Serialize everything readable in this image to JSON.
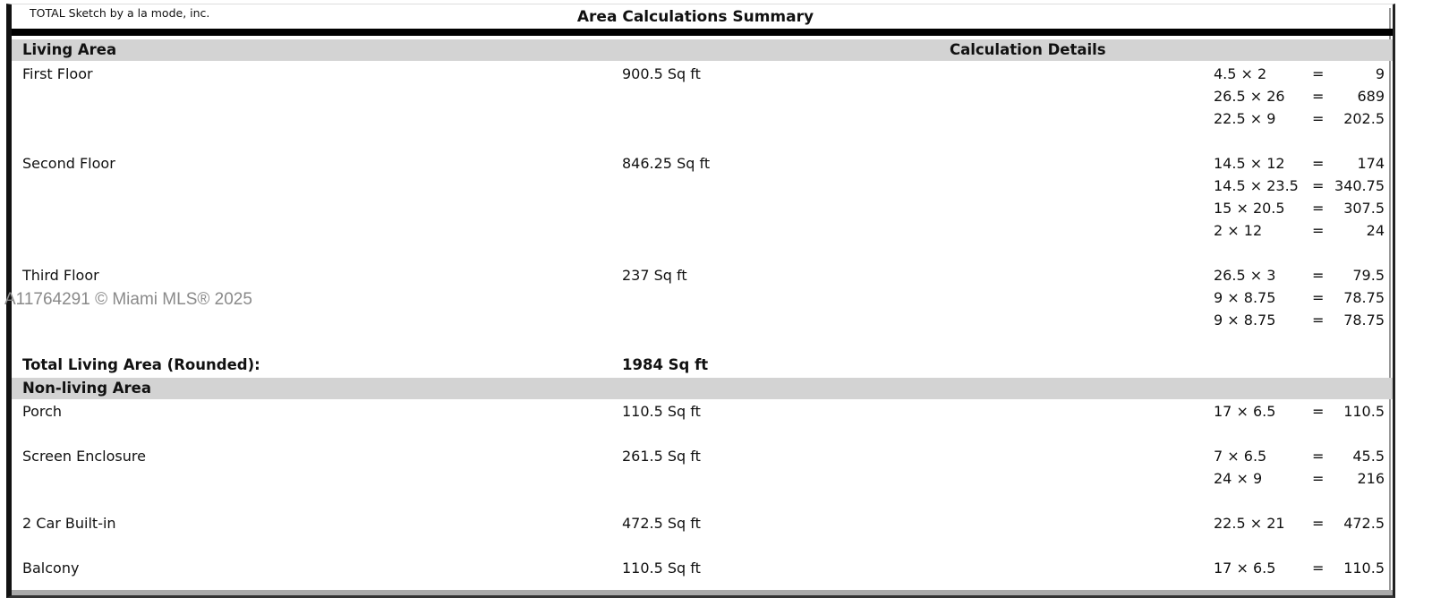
{
  "header": {
    "vendor": "TOTAL Sketch by a la mode, inc.",
    "title": "Area Calculations Summary"
  },
  "living": {
    "heading": "Living Area",
    "details_heading": "Calculation Details",
    "items": [
      {
        "name": "First Floor",
        "area": "900.5 Sq ft",
        "details": [
          {
            "expr": "4.5 × 2",
            "eq": "=",
            "val": "9"
          },
          {
            "expr": "26.5 × 26",
            "eq": "=",
            "val": "689"
          },
          {
            "expr": "22.5 × 9",
            "eq": "=",
            "val": "202.5"
          }
        ]
      },
      {
        "name": "Second Floor",
        "area": "846.25 Sq ft",
        "details": [
          {
            "expr": "14.5 × 12",
            "eq": "=",
            "val": "174"
          },
          {
            "expr": "14.5 × 23.5",
            "eq": "=",
            "val": "340.75"
          },
          {
            "expr": "15 × 20.5",
            "eq": "=",
            "val": "307.5"
          },
          {
            "expr": "2 × 12",
            "eq": "=",
            "val": "24"
          }
        ]
      },
      {
        "name": "Third Floor",
        "area": "237 Sq ft",
        "details": [
          {
            "expr": "26.5 × 3",
            "eq": "=",
            "val": "79.5"
          },
          {
            "expr": "9 × 8.75",
            "eq": "=",
            "val": "78.75"
          },
          {
            "expr": "9 × 8.75",
            "eq": "=",
            "val": "78.75"
          }
        ]
      }
    ],
    "total_label": "Total Living Area (Rounded):",
    "total_value": "1984 Sq ft"
  },
  "nonliving": {
    "heading": "Non-living Area",
    "items": [
      {
        "name": "Porch",
        "area": "110.5 Sq ft",
        "details": [
          {
            "expr": "17 × 6.5",
            "eq": "=",
            "val": "110.5"
          }
        ]
      },
      {
        "name": "Screen Enclosure",
        "area": "261.5 Sq ft",
        "details": [
          {
            "expr": "7 × 6.5",
            "eq": "=",
            "val": "45.5"
          },
          {
            "expr": "24 × 9",
            "eq": "=",
            "val": "216"
          }
        ]
      },
      {
        "name": "2 Car Built-in",
        "area": "472.5 Sq ft",
        "details": [
          {
            "expr": "22.5 × 21",
            "eq": "=",
            "val": "472.5"
          }
        ]
      },
      {
        "name": "Balcony",
        "area": "110.5 Sq ft",
        "details": [
          {
            "expr": "17 × 6.5",
            "eq": "=",
            "val": "110.5"
          }
        ]
      }
    ]
  },
  "watermark": "A11764291 © Miami MLS® 2025"
}
